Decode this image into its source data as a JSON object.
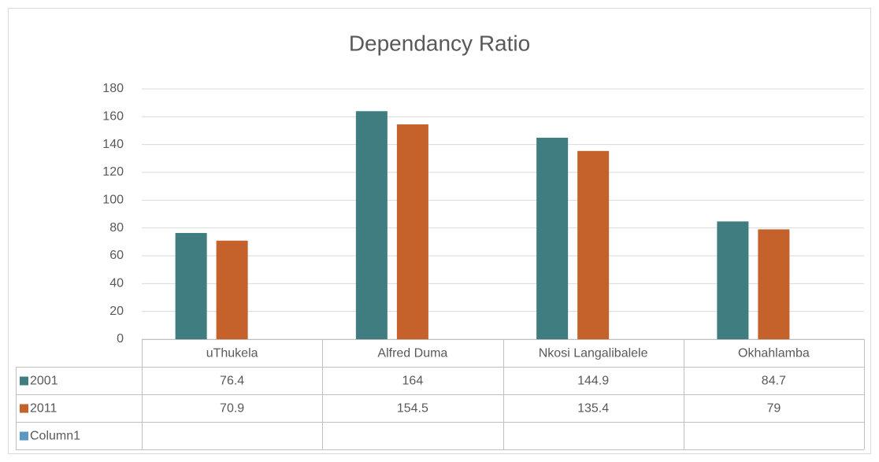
{
  "chart_data": {
    "type": "bar",
    "title": "Dependancy Ratio",
    "categories": [
      "uThukela",
      "Alfred Duma",
      "Nkosi Langalibalele",
      "Okhahlamba"
    ],
    "series": [
      {
        "name": "2001",
        "color": "#3f7d81",
        "values": [
          76.4,
          164,
          144.9,
          84.7
        ]
      },
      {
        "name": "2011",
        "color": "#c5622b",
        "values": [
          70.9,
          154.5,
          135.4,
          79
        ]
      },
      {
        "name": "Column1",
        "color": "#5f97c3",
        "values": [
          null,
          null,
          null,
          null
        ]
      }
    ],
    "ylim": [
      0,
      180
    ],
    "yticks": [
      0,
      20,
      40,
      60,
      80,
      100,
      120,
      140,
      160,
      180
    ],
    "grid": true
  }
}
